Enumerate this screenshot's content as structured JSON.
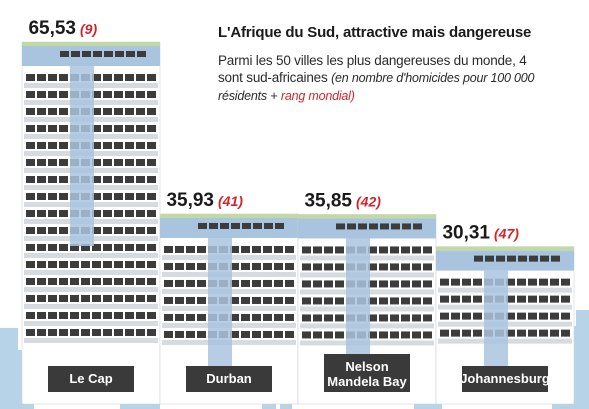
{
  "title": "L'Afrique du Sud, attractive mais dangereuse",
  "subtitle": {
    "main": "Parmi les 50 villes les plus dangereuses du monde, 4 sont sud-africaines",
    "note": "(en nombre d'homicides pour 100 000 résidents +",
    "rank_note": "rang mondial)"
  },
  "colors": {
    "accent": "#d5232b",
    "facade": "#ffffff",
    "window": "#3d3c3c",
    "stripe": "#d7dbe0",
    "roof_green": "#c2d9a3",
    "roof_blue": "#a9c4de",
    "label_box": "#3a3a3a",
    "skyline": "#b7d3e7"
  },
  "chart_data": {
    "type": "bar",
    "categories": [
      "Le Cap",
      "Durban",
      "Nelson Mandela Bay",
      "Johannesburg"
    ],
    "category_lines": [
      [
        "Le Cap"
      ],
      [
        "Durban"
      ],
      [
        "Nelson",
        "Mandela Bay"
      ],
      [
        "Johannesburg"
      ]
    ],
    "values": [
      65.53,
      35.93,
      35.85,
      30.31
    ],
    "value_labels": [
      "65,53",
      "35,93",
      "35,85",
      "30,31"
    ],
    "rank_labels": [
      "(9)",
      "(41)",
      "(42)",
      "(47)"
    ],
    "ranks": [
      9,
      41,
      42,
      47
    ],
    "ylim": [
      0,
      70
    ],
    "grid": false,
    "legend": "none"
  }
}
